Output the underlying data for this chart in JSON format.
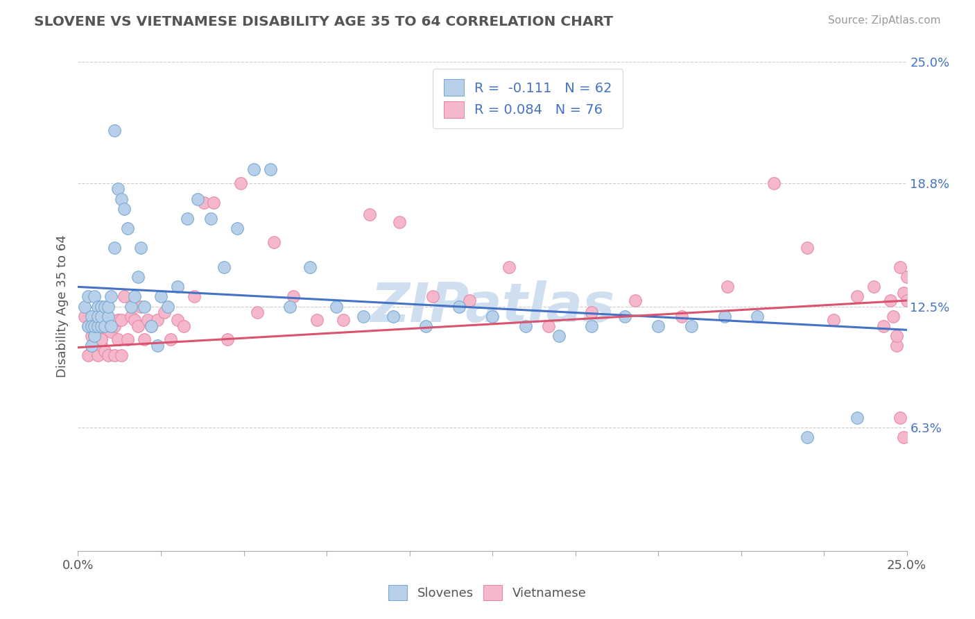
{
  "title": "SLOVENE VS VIETNAMESE DISABILITY AGE 35 TO 64 CORRELATION CHART",
  "source_text": "Source: ZipAtlas.com",
  "ylabel": "Disability Age 35 to 64",
  "xmin": 0.0,
  "xmax": 0.25,
  "ymin": 0.0,
  "ymax": 0.25,
  "yticks": [
    0.063,
    0.125,
    0.188,
    0.25
  ],
  "ytick_labels": [
    "6.3%",
    "12.5%",
    "18.8%",
    "25.0%"
  ],
  "legend_r1": "R =  -0.111",
  "legend_n1": "N = 62",
  "legend_r2": "R = 0.084",
  "legend_n2": "N = 76",
  "slovene_fill": "#b8d0ea",
  "slovene_edge": "#7aaad0",
  "vietnamese_fill": "#f5b8ca",
  "vietnamese_edge": "#e888a8",
  "slovene_line_color": "#4472c4",
  "vietnamese_line_color": "#d9536f",
  "background_color": "#ffffff",
  "watermark_text": "ZIPatlas",
  "watermark_color": "#d0dff0",
  "slovene_line_x0": 0.0,
  "slovene_line_y0": 0.135,
  "slovene_line_x1": 0.25,
  "slovene_line_y1": 0.113,
  "vietnamese_line_x0": 0.0,
  "vietnamese_line_y0": 0.104,
  "vietnamese_line_x1": 0.25,
  "vietnamese_line_y1": 0.128,
  "slovene_x": [
    0.002,
    0.003,
    0.003,
    0.004,
    0.004,
    0.004,
    0.005,
    0.005,
    0.005,
    0.006,
    0.006,
    0.006,
    0.007,
    0.007,
    0.007,
    0.008,
    0.008,
    0.009,
    0.009,
    0.01,
    0.01,
    0.011,
    0.011,
    0.012,
    0.013,
    0.014,
    0.015,
    0.016,
    0.017,
    0.018,
    0.019,
    0.02,
    0.022,
    0.024,
    0.025,
    0.027,
    0.03,
    0.033,
    0.036,
    0.04,
    0.044,
    0.048,
    0.053,
    0.058,
    0.064,
    0.07,
    0.078,
    0.086,
    0.095,
    0.105,
    0.115,
    0.125,
    0.135,
    0.145,
    0.155,
    0.165,
    0.175,
    0.185,
    0.195,
    0.205,
    0.22,
    0.235
  ],
  "slovene_y": [
    0.125,
    0.115,
    0.13,
    0.12,
    0.115,
    0.105,
    0.13,
    0.11,
    0.115,
    0.125,
    0.115,
    0.12,
    0.125,
    0.115,
    0.12,
    0.125,
    0.115,
    0.12,
    0.125,
    0.13,
    0.115,
    0.215,
    0.155,
    0.185,
    0.18,
    0.175,
    0.165,
    0.125,
    0.13,
    0.14,
    0.155,
    0.125,
    0.115,
    0.105,
    0.13,
    0.125,
    0.135,
    0.17,
    0.18,
    0.17,
    0.145,
    0.165,
    0.195,
    0.195,
    0.125,
    0.145,
    0.125,
    0.12,
    0.12,
    0.115,
    0.125,
    0.12,
    0.115,
    0.11,
    0.115,
    0.12,
    0.115,
    0.115,
    0.12,
    0.12,
    0.058,
    0.068
  ],
  "vietnamese_x": [
    0.002,
    0.003,
    0.003,
    0.004,
    0.004,
    0.005,
    0.005,
    0.005,
    0.006,
    0.006,
    0.006,
    0.007,
    0.007,
    0.007,
    0.008,
    0.008,
    0.009,
    0.009,
    0.01,
    0.01,
    0.011,
    0.011,
    0.012,
    0.012,
    0.013,
    0.013,
    0.014,
    0.015,
    0.016,
    0.017,
    0.018,
    0.019,
    0.02,
    0.021,
    0.022,
    0.024,
    0.026,
    0.028,
    0.03,
    0.032,
    0.035,
    0.038,
    0.041,
    0.045,
    0.049,
    0.054,
    0.059,
    0.065,
    0.072,
    0.08,
    0.088,
    0.097,
    0.107,
    0.118,
    0.13,
    0.142,
    0.155,
    0.168,
    0.182,
    0.196,
    0.21,
    0.22,
    0.228,
    0.235,
    0.24,
    0.243,
    0.245,
    0.246,
    0.247,
    0.247,
    0.248,
    0.248,
    0.249,
    0.249,
    0.25,
    0.25
  ],
  "vietnamese_y": [
    0.12,
    0.1,
    0.115,
    0.11,
    0.105,
    0.12,
    0.105,
    0.11,
    0.118,
    0.1,
    0.112,
    0.118,
    0.105,
    0.108,
    0.118,
    0.102,
    0.115,
    0.1,
    0.118,
    0.112,
    0.1,
    0.115,
    0.108,
    0.118,
    0.1,
    0.118,
    0.13,
    0.108,
    0.12,
    0.118,
    0.115,
    0.125,
    0.108,
    0.118,
    0.115,
    0.118,
    0.122,
    0.108,
    0.118,
    0.115,
    0.13,
    0.178,
    0.178,
    0.108,
    0.188,
    0.122,
    0.158,
    0.13,
    0.118,
    0.118,
    0.172,
    0.168,
    0.13,
    0.128,
    0.145,
    0.115,
    0.122,
    0.128,
    0.12,
    0.135,
    0.188,
    0.155,
    0.118,
    0.13,
    0.135,
    0.115,
    0.128,
    0.12,
    0.105,
    0.11,
    0.068,
    0.145,
    0.058,
    0.132,
    0.14,
    0.128
  ]
}
